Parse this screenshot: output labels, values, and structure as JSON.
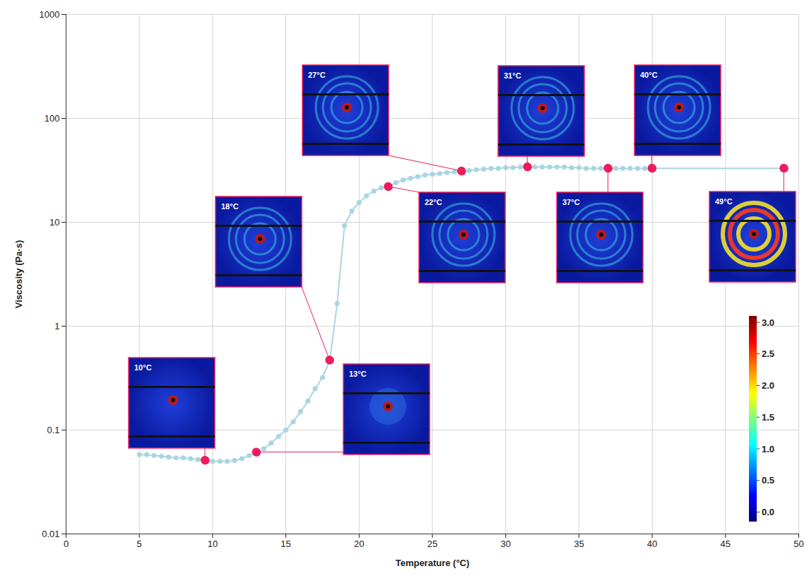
{
  "chart_data": {
    "type": "line",
    "xlabel": "Temperature (°C)",
    "ylabel": "Viscosity (Pa·s)",
    "x": [
      5,
      5.5,
      6,
      6.5,
      7,
      7.5,
      8,
      8.5,
      9,
      9.5,
      10,
      10.5,
      11,
      11.5,
      12,
      12.5,
      13,
      13.5,
      14,
      14.5,
      15,
      15.5,
      16,
      16.5,
      17,
      17.5,
      18,
      18.5,
      19,
      19.5,
      20,
      20.5,
      21,
      21.5,
      22,
      22.5,
      23,
      23.5,
      24,
      24.5,
      25,
      25.5,
      26,
      26.5,
      27,
      27.5,
      28,
      28.5,
      29,
      29.5,
      30,
      30.5,
      31,
      31.5,
      32,
      32.5,
      33,
      33.5,
      34,
      34.5,
      35,
      35.5,
      36,
      36.5,
      37,
      37.5,
      38,
      38.5,
      39,
      39.5,
      40,
      49
    ],
    "values": [
      0.058,
      0.058,
      0.057,
      0.056,
      0.055,
      0.054,
      0.054,
      0.053,
      0.052,
      0.051,
      0.05,
      0.05,
      0.05,
      0.051,
      0.053,
      0.057,
      0.061,
      0.066,
      0.075,
      0.087,
      0.1,
      0.12,
      0.15,
      0.19,
      0.25,
      0.32,
      0.47,
      1.65,
      9.3,
      12.8,
      15.5,
      18,
      20,
      21.5,
      22,
      24,
      25.5,
      26.5,
      27.5,
      28.5,
      29,
      29.5,
      30,
      30.5,
      31,
      31.5,
      32,
      32.5,
      33,
      33,
      33.5,
      33.5,
      34,
      34,
      34,
      34,
      34,
      34,
      34,
      33.5,
      33.5,
      33,
      33,
      33,
      33,
      33,
      33,
      33,
      33,
      33,
      33,
      33
    ],
    "color": "#a8d5e2",
    "marker": "circle",
    "log": "y",
    "grid": true,
    "xlim": [
      0,
      50
    ],
    "xticks": [
      0,
      5,
      10,
      15,
      20,
      25,
      30,
      35,
      40,
      45,
      50
    ],
    "ylim": [
      0.01,
      1000
    ],
    "yticks": [
      0.01,
      0.1,
      1,
      10,
      100,
      1000
    ],
    "annotations": [
      {
        "text": "10°C",
        "x": 9.5,
        "y": 0.051
      },
      {
        "text": "13°C",
        "x": 13,
        "y": 0.061
      },
      {
        "text": "18°C",
        "x": 18,
        "y": 0.47
      },
      {
        "text": "22°C",
        "x": 22,
        "y": 22
      },
      {
        "text": "27°C",
        "x": 27,
        "y": 31
      },
      {
        "text": "31°C",
        "x": 31.5,
        "y": 34
      },
      {
        "text": "37°C",
        "x": 37,
        "y": 33
      },
      {
        "text": "40°C",
        "x": 40,
        "y": 33
      },
      {
        "text": "49°C",
        "x": 49,
        "y": 33
      }
    ],
    "colorbar": {
      "range": [
        -0.15,
        3.1
      ],
      "ticks": [
        {
          "value": 0,
          "label": "0.0"
        },
        {
          "value": 0.5,
          "label": "0.5"
        },
        {
          "value": 1,
          "label": "1.0"
        },
        {
          "value": 1.5,
          "label": "1.5"
        },
        {
          "value": 2,
          "label": "2.0"
        },
        {
          "value": 2.5,
          "label": "2.5"
        },
        {
          "value": 3,
          "label": "3.0"
        }
      ]
    }
  }
}
